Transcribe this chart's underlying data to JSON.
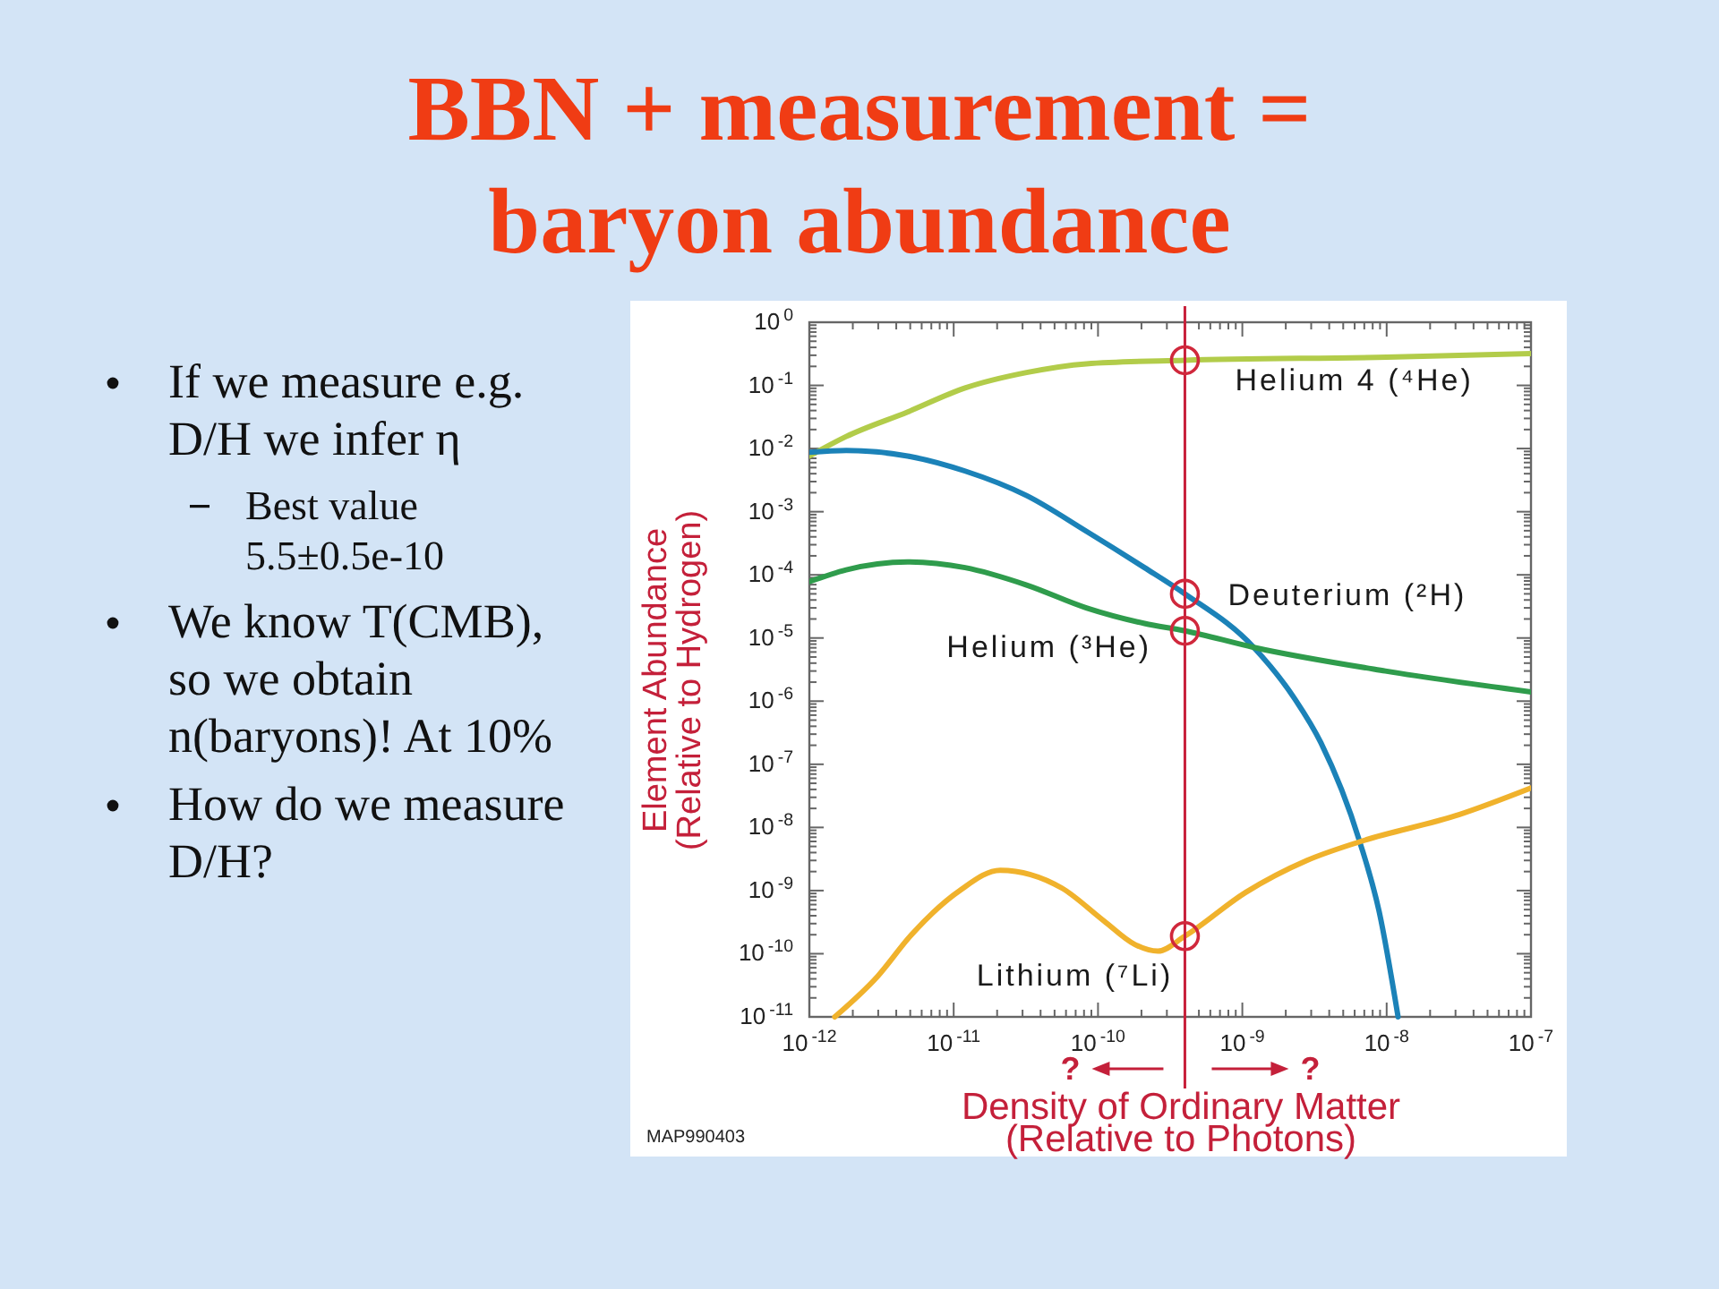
{
  "chart_data": {
    "type": "line",
    "title": "BBN + measurement = baryon abundance",
    "xlabel": "Density of Ordinary Matter (Relative to Photons)",
    "ylabel": "Element Abundance (Relative to Hydrogen)",
    "log": "xy",
    "xlim": [
      1e-12,
      1e-07
    ],
    "ylim": [
      1e-11,
      1
    ],
    "xticks": [
      {
        "value": 1e-12,
        "label": "10$^{-12}$"
      },
      {
        "value": 2e-12,
        "label": null
      },
      {
        "value": 3e-12,
        "label": null
      },
      {
        "value": 4e-12,
        "label": null
      },
      {
        "value": 5e-12,
        "label": null
      },
      {
        "value": 6e-12,
        "label": null
      },
      {
        "value": 7e-12,
        "label": null
      },
      {
        "value": 8e-12,
        "label": null
      },
      {
        "value": 9e-12,
        "label": null
      },
      {
        "value": 1e-11,
        "label": "10$^{-11}$"
      },
      {
        "value": 2e-11,
        "label": null
      },
      {
        "value": 3e-11,
        "label": null
      },
      {
        "value": 4e-11,
        "label": null
      },
      {
        "value": 5e-11,
        "label": null
      },
      {
        "value": 6e-11,
        "label": null
      },
      {
        "value": 7e-11,
        "label": null
      },
      {
        "value": 8e-11,
        "label": null
      },
      {
        "value": 9e-11,
        "label": null
      },
      {
        "value": 1e-10,
        "label": "10$^{-10}$"
      },
      {
        "value": 2e-10,
        "label": null
      },
      {
        "value": 3e-10,
        "label": null
      },
      {
        "value": 4e-10,
        "label": null
      },
      {
        "value": 5e-10,
        "label": null
      },
      {
        "value": 6e-10,
        "label": null
      },
      {
        "value": 7e-10,
        "label": null
      },
      {
        "value": 8e-10,
        "label": null
      },
      {
        "value": 9e-10,
        "label": null
      },
      {
        "value": 1e-09,
        "label": "10$^{-9}$"
      },
      {
        "value": 2e-09,
        "label": null
      },
      {
        "value": 3e-09,
        "label": null
      },
      {
        "value": 4e-09,
        "label": null
      },
      {
        "value": 5e-09,
        "label": null
      },
      {
        "value": 6e-09,
        "label": null
      },
      {
        "value": 7e-09,
        "label": null
      },
      {
        "value": 8e-09,
        "label": null
      },
      {
        "value": 9e-09,
        "label": null
      },
      {
        "value": 1e-08,
        "label": "10$^{-8}$"
      },
      {
        "value": 2e-08,
        "label": null
      },
      {
        "value": 3e-08,
        "label": null
      },
      {
        "value": 4e-08,
        "label": null
      },
      {
        "value": 5e-08,
        "label": null
      },
      {
        "value": 6e-08,
        "label": null
      },
      {
        "value": 7e-08,
        "label": null
      },
      {
        "value": 8e-08,
        "label": null
      },
      {
        "value": 9e-08,
        "label": null
      },
      {
        "value": 1e-07,
        "label": "10$^{-7}$"
      }
    ],
    "yticks": [
      {
        "value": 1e-11,
        "label": "10$^{-11}$"
      },
      {
        "value": 2e-11,
        "label": null
      },
      {
        "value": 3e-11,
        "label": null
      },
      {
        "value": 4e-11,
        "label": null
      },
      {
        "value": 5e-11,
        "label": null
      },
      {
        "value": 6e-11,
        "label": null
      },
      {
        "value": 7e-11,
        "label": null
      },
      {
        "value": 8e-11,
        "label": null
      },
      {
        "value": 9e-11,
        "label": null
      },
      {
        "value": 1e-10,
        "label": "10$^{-10}$"
      },
      {
        "value": 2e-10,
        "label": null
      },
      {
        "value": 3e-10,
        "label": null
      },
      {
        "value": 4e-10,
        "label": null
      },
      {
        "value": 5e-10,
        "label": null
      },
      {
        "value": 6e-10,
        "label": null
      },
      {
        "value": 7e-10,
        "label": null
      },
      {
        "value": 8e-10,
        "label": null
      },
      {
        "value": 9e-10,
        "label": null
      },
      {
        "value": 1e-09,
        "label": "10$^{-9}$"
      },
      {
        "value": 2e-09,
        "label": null
      },
      {
        "value": 3e-09,
        "label": null
      },
      {
        "value": 4e-09,
        "label": null
      },
      {
        "value": 5e-09,
        "label": null
      },
      {
        "value": 6e-09,
        "label": null
      },
      {
        "value": 7e-09,
        "label": null
      },
      {
        "value": 8e-09,
        "label": null
      },
      {
        "value": 9e-09,
        "label": null
      },
      {
        "value": 1e-08,
        "label": "10$^{-8}$"
      },
      {
        "value": 2e-08,
        "label": null
      },
      {
        "value": 3e-08,
        "label": null
      },
      {
        "value": 4e-08,
        "label": null
      },
      {
        "value": 5e-08,
        "label": null
      },
      {
        "value": 6e-08,
        "label": null
      },
      {
        "value": 7e-08,
        "label": null
      },
      {
        "value": 8e-08,
        "label": null
      },
      {
        "value": 9e-08,
        "label": null
      },
      {
        "value": 1e-07,
        "label": "10$^{-7}$"
      },
      {
        "value": 2e-07,
        "label": null
      },
      {
        "value": 3e-07,
        "label": null
      },
      {
        "value": 4e-07,
        "label": null
      },
      {
        "value": 5e-07,
        "label": null
      },
      {
        "value": 6e-07,
        "label": null
      },
      {
        "value": 7e-07,
        "label": null
      },
      {
        "value": 8e-07,
        "label": null
      },
      {
        "value": 9e-07,
        "label": null
      },
      {
        "value": 1e-06,
        "label": "10$^{-6}$"
      },
      {
        "value": 2e-06,
        "label": null
      },
      {
        "value": 3e-06,
        "label": null
      },
      {
        "value": 4e-06,
        "label": null
      },
      {
        "value": 5e-06,
        "label": null
      },
      {
        "value": 6e-06,
        "label": null
      },
      {
        "value": 7e-06,
        "label": null
      },
      {
        "value": 8e-06,
        "label": null
      },
      {
        "value": 9e-06,
        "label": null
      },
      {
        "value": 1e-05,
        "label": "10$^{-5}$"
      },
      {
        "value": 2e-05,
        "label": null
      },
      {
        "value": 3e-05,
        "label": null
      },
      {
        "value": 4e-05,
        "label": null
      },
      {
        "value": 5e-05,
        "label": null
      },
      {
        "value": 6e-05,
        "label": null
      },
      {
        "value": 7e-05,
        "label": null
      },
      {
        "value": 8e-05,
        "label": null
      },
      {
        "value": 9e-05,
        "label": null
      },
      {
        "value": 0.0001,
        "label": "10$^{-4}$"
      },
      {
        "value": 0.0002,
        "label": null
      },
      {
        "value": 0.0003,
        "label": null
      },
      {
        "value": 0.0004,
        "label": null
      },
      {
        "value": 0.0005,
        "label": null
      },
      {
        "value": 0.0006,
        "label": null
      },
      {
        "value": 0.0007,
        "label": null
      },
      {
        "value": 0.0008,
        "label": null
      },
      {
        "value": 0.0009,
        "label": null
      },
      {
        "value": 0.001,
        "label": "10$^{-3}$"
      },
      {
        "value": 0.002,
        "label": null
      },
      {
        "value": 0.003,
        "label": null
      },
      {
        "value": 0.004,
        "label": null
      },
      {
        "value": 0.005,
        "label": null
      },
      {
        "value": 0.006,
        "label": null
      },
      {
        "value": 0.007,
        "label": null
      },
      {
        "value": 0.008,
        "label": null
      },
      {
        "value": 0.009,
        "label": null
      },
      {
        "value": 0.01,
        "label": "10$^{-2}$"
      },
      {
        "value": 0.02,
        "label": null
      },
      {
        "value": 0.03,
        "label": null
      },
      {
        "value": 0.04,
        "label": null
      },
      {
        "value": 0.05,
        "label": null
      },
      {
        "value": 0.06,
        "label": null
      },
      {
        "value": 0.07,
        "label": null
      },
      {
        "value": 0.08,
        "label": null
      },
      {
        "value": 0.09,
        "label": null
      },
      {
        "value": 0.1,
        "label": "10$^{-1}$"
      },
      {
        "value": 0.2,
        "label": null
      },
      {
        "value": 0.3,
        "label": null
      },
      {
        "value": 0.4,
        "label": null
      },
      {
        "value": 0.5,
        "label": null
      },
      {
        "value": 0.6,
        "label": null
      },
      {
        "value": 0.7,
        "label": null
      },
      {
        "value": 0.8,
        "label": null
      },
      {
        "value": 0.9,
        "label": null
      },
      {
        "value": 1,
        "label": "10$^{0}$"
      }
    ],
    "series": [
      {
        "name": "Helium 4 (⁴He)",
        "color": "#b2cc4a",
        "x": [
          1e-12,
          1.8e-12,
          4.8e-12,
          1.2e-11,
          3.2e-11,
          8.3e-11,
          4e-10,
          1e-08,
          1e-07
        ],
        "values": [
          0.0076,
          0.0155,
          0.038,
          0.091,
          0.16,
          0.22,
          0.25,
          0.28,
          0.32
        ]
      },
      {
        "name": "Deuterium (²H)",
        "color": "#1b82b8",
        "x": [
          1e-12,
          1.8e-12,
          4.8e-12,
          1.2e-11,
          3.2e-11,
          8.3e-11,
          2.1e-10,
          4e-10,
          1.2e-09,
          2.3e-09,
          3.5e-09,
          6.5e-09,
          8.9e-09,
          1.2e-08
        ],
        "values": [
          0.0087,
          0.0093,
          0.0076,
          0.0044,
          0.0018,
          0.00049,
          0.00013,
          5e-05,
          7.1e-06,
          1.1e-06,
          2.2e-07,
          6e-09,
          4.5e-10,
          1e-11
        ]
      },
      {
        "name": "Helium (³He)",
        "color": "#2f9c4c",
        "x": [
          1e-12,
          1.8e-12,
          4.8e-12,
          1.2e-11,
          3.2e-11,
          8.3e-11,
          2.1e-10,
          4e-10,
          1.2e-09,
          9.8e-09,
          1e-07
        ],
        "values": [
          7.8e-05,
          0.00012,
          0.00016,
          0.00013,
          6.9e-05,
          3e-05,
          1.7e-05,
          1.3e-05,
          7.1e-06,
          3e-06,
          1.4e-06
        ]
      },
      {
        "name": "Lithium (⁷Li)",
        "color": "#f0b22c",
        "x": [
          1.5e-12,
          3e-12,
          5e-12,
          1.1e-11,
          2.1e-11,
          5.6e-11,
          1.1e-10,
          1.8e-10,
          2.6e-10,
          4e-10,
          1.05e-09,
          2.8e-09,
          6.6e-09,
          3.2e-08,
          1e-07
        ],
        "values": [
          1e-11,
          4.5e-11,
          1.9e-10,
          1e-09,
          2.1e-09,
          1.1e-09,
          3.3e-10,
          1.4e-10,
          1.1e-10,
          1.9e-10,
          9.3e-10,
          3e-09,
          6e-09,
          1.6e-08,
          4.2e-08
        ]
      },
      {
        "type": "scatter",
        "marker": "circle",
        "color": "#d0283c",
        "x": [
          4e-10,
          4e-10,
          4e-10,
          4e-10
        ],
        "values": [
          0.25,
          5e-05,
          1.3e-05,
          1.9e-10
        ]
      }
    ],
    "ref_lines": [
      {
        "axis": "x",
        "value": 4e-10,
        "color": "#c8203a"
      }
    ],
    "annotations": [
      "If we measure e.g. D/H we infer η",
      "Best value 5.5±0.5e-10",
      "We know T(CMB), so we obtain n(baryons)! At 10%",
      "How do we measure D/H?",
      "?",
      "?",
      "MAP990403"
    ]
  }
}
